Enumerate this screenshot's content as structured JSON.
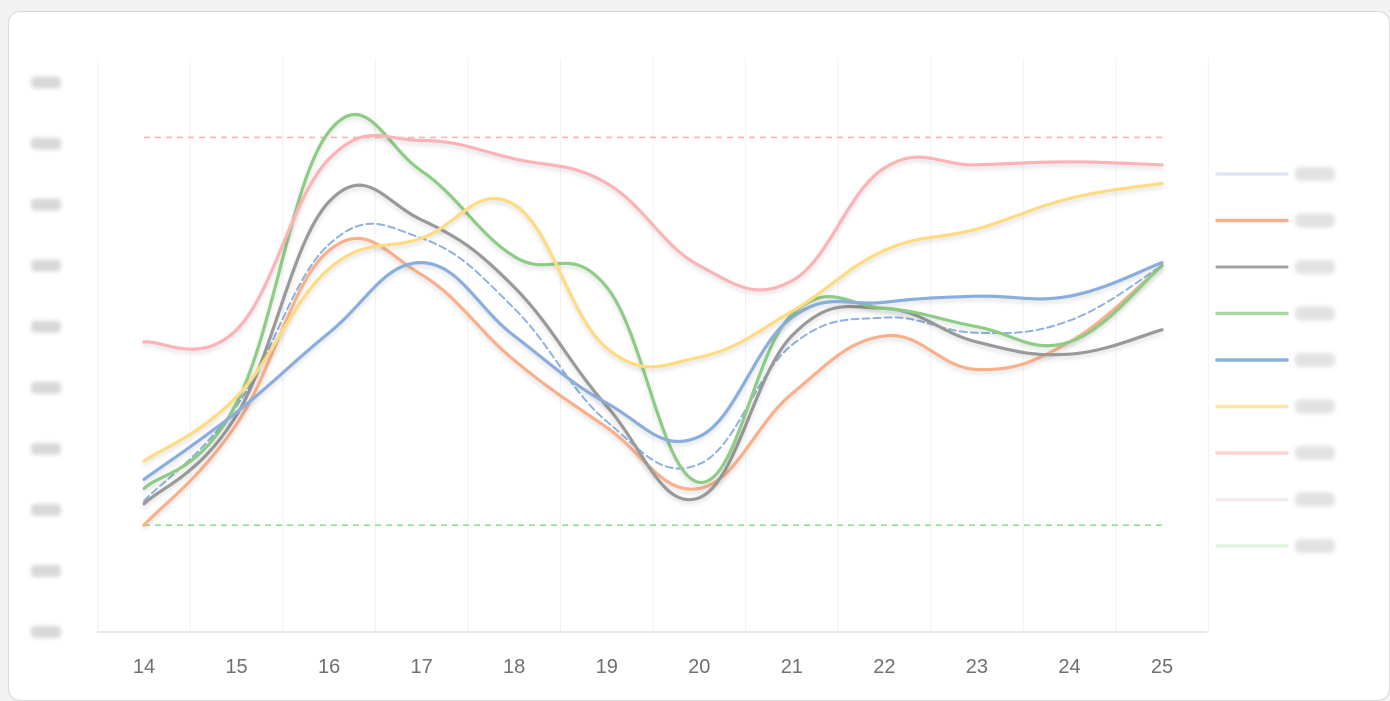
{
  "chart_data": {
    "type": "line",
    "title": "",
    "xlabel": "",
    "ylabel": "",
    "x": [
      14,
      15,
      16,
      17,
      18,
      19,
      20,
      21,
      22,
      23,
      24,
      25
    ],
    "ylim": [
      0,
      9.5
    ],
    "grid": true,
    "legend_position": "right",
    "series": [
      {
        "color": "#8fb1e0",
        "style": "dashed",
        "values": [
          2.15,
          3.7,
          6.35,
          6.45,
          5.3,
          3.45,
          2.75,
          4.7,
          5.15,
          4.9,
          5.1,
          6.0
        ]
      },
      {
        "color": "#f9b08a",
        "style": "solid",
        "values": [
          1.75,
          3.4,
          6.25,
          5.85,
          4.45,
          3.35,
          2.35,
          3.9,
          4.85,
          4.3,
          4.75,
          6.0
        ]
      },
      {
        "color": "#999999",
        "style": "solid",
        "values": [
          2.1,
          3.55,
          7.05,
          6.75,
          5.65,
          3.7,
          2.2,
          4.85,
          5.3,
          4.75,
          4.55,
          4.95
        ]
      },
      {
        "color": "#8dcc85",
        "style": "solid",
        "values": [
          2.35,
          3.75,
          8.2,
          7.55,
          6.15,
          5.65,
          2.45,
          5.2,
          5.3,
          5.0,
          4.75,
          6.0
        ]
      },
      {
        "color": "#8aaedc",
        "style": "solid",
        "values": [
          2.5,
          3.6,
          4.9,
          6.05,
          4.85,
          3.75,
          3.2,
          5.15,
          5.4,
          5.5,
          5.5,
          6.05
        ]
      },
      {
        "color": "#fedb80",
        "style": "solid",
        "values": [
          2.8,
          3.85,
          5.95,
          6.45,
          7.0,
          4.65,
          4.5,
          5.25,
          6.25,
          6.6,
          7.1,
          7.35
        ]
      },
      {
        "color": "#fbb3b6",
        "style": "solid",
        "values": [
          4.75,
          4.95,
          7.75,
          8.05,
          7.75,
          7.35,
          6.0,
          5.75,
          7.6,
          7.65,
          7.7,
          7.65
        ]
      },
      {
        "color": "#ffb3b3",
        "style": "dashed",
        "values": [
          8.1,
          8.1,
          8.1,
          8.1,
          8.1,
          8.1,
          8.1,
          8.1,
          8.1,
          8.1,
          8.1,
          8.1
        ]
      },
      {
        "color": "#8ae08e",
        "style": "dashed",
        "values": [
          1.75,
          1.75,
          1.75,
          1.75,
          1.75,
          1.75,
          1.75,
          1.75,
          1.75,
          1.75,
          1.75,
          1.75
        ]
      }
    ],
    "legend_swatches": [
      {
        "color": "#dfe6f3",
        "style": "solid"
      },
      {
        "color": "#f9b08a",
        "style": "solid"
      },
      {
        "color": "#a0a0a0",
        "style": "dotted"
      },
      {
        "color": "#a8d8a2",
        "style": "solid"
      },
      {
        "color": "#8aaedc",
        "style": "solid"
      },
      {
        "color": "#fee6a8",
        "style": "solid"
      },
      {
        "color": "#fcd2d2",
        "style": "solid"
      },
      {
        "color": "#f4ecec",
        "style": "solid"
      },
      {
        "color": "#dff3df",
        "style": "solid"
      }
    ]
  }
}
